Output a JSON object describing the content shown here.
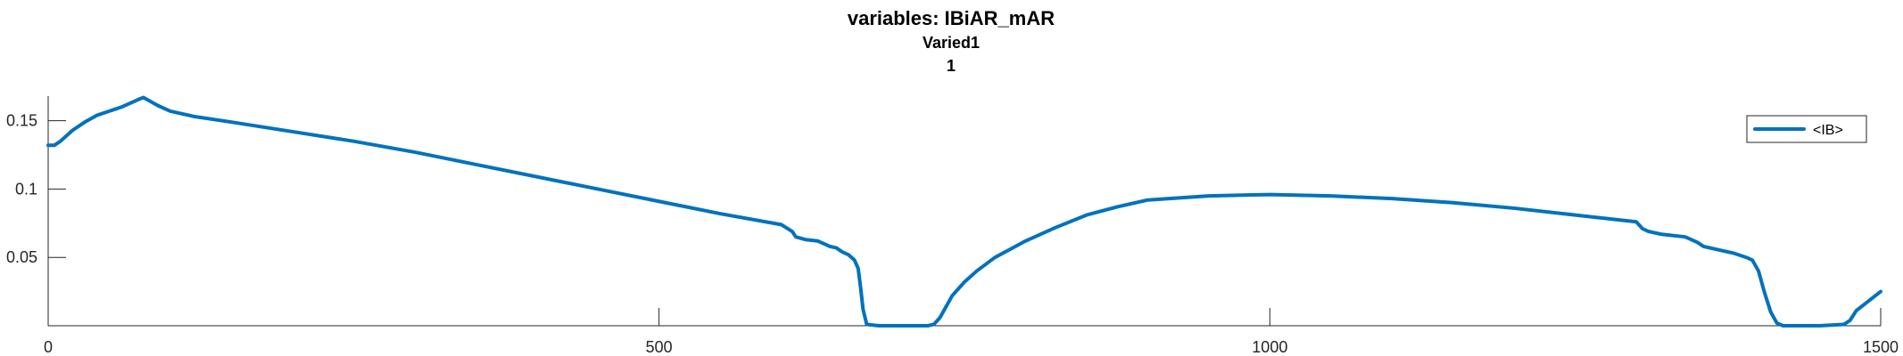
{
  "chart_data": {
    "type": "line",
    "title": "variables: IBiAR_mAR",
    "subtitle_1": "Varied1",
    "subtitle_2": "1",
    "xlabel": "",
    "ylabel": "",
    "xlim": [
      0,
      1500
    ],
    "ylim": [
      0,
      0.168
    ],
    "x_ticks": [
      0,
      500,
      1000,
      1500
    ],
    "x_tick_labels": [
      "0",
      "500",
      "1000",
      "1500"
    ],
    "y_ticks": [
      0.05,
      0.1,
      0.15
    ],
    "y_tick_labels": [
      "0.05",
      "0.1",
      "0.15"
    ],
    "grid": false,
    "legend_position": "top-right",
    "series": [
      {
        "name": "<IB>",
        "color": "#0072BD",
        "x": [
          0,
          5,
          10,
          20,
          30,
          40,
          50,
          60,
          70,
          75,
          78,
          80,
          90,
          100,
          120,
          150,
          200,
          250,
          300,
          350,
          400,
          450,
          500,
          550,
          600,
          609,
          612,
          620,
          630,
          640,
          645,
          650,
          655,
          660,
          663,
          665,
          667,
          670,
          680,
          700,
          720,
          725,
          730,
          735,
          740,
          750,
          760,
          775,
          800,
          825,
          850,
          875,
          900,
          950,
          1000,
          1050,
          1100,
          1150,
          1200,
          1250,
          1300,
          1305,
          1310,
          1320,
          1340,
          1350,
          1355,
          1360,
          1370,
          1380,
          1390,
          1395,
          1400,
          1405,
          1410,
          1415,
          1420,
          1425,
          1428,
          1430,
          1435,
          1450,
          1470,
          1475,
          1480,
          1490,
          1500
        ],
        "y": [
          0.132,
          0.132,
          0.135,
          0.143,
          0.149,
          0.154,
          0.157,
          0.16,
          0.164,
          0.166,
          0.167,
          0.166,
          0.161,
          0.157,
          0.153,
          0.149,
          0.142,
          0.135,
          0.127,
          0.118,
          0.109,
          0.1,
          0.091,
          0.082,
          0.074,
          0.069,
          0.065,
          0.063,
          0.062,
          0.058,
          0.057,
          0.054,
          0.052,
          0.048,
          0.042,
          0.028,
          0.012,
          0.001,
          0.0,
          0.0,
          0.0,
          0.001,
          0.006,
          0.014,
          0.022,
          0.032,
          0.04,
          0.05,
          0.062,
          0.072,
          0.081,
          0.087,
          0.092,
          0.095,
          0.096,
          0.095,
          0.093,
          0.09,
          0.086,
          0.081,
          0.076,
          0.071,
          0.069,
          0.067,
          0.065,
          0.061,
          0.058,
          0.057,
          0.055,
          0.053,
          0.05,
          0.048,
          0.04,
          0.024,
          0.01,
          0.002,
          0.0,
          0.0,
          0.0,
          0.0,
          0.0,
          0.0,
          0.001,
          0.004,
          0.011,
          0.018,
          0.025
        ]
      }
    ]
  }
}
